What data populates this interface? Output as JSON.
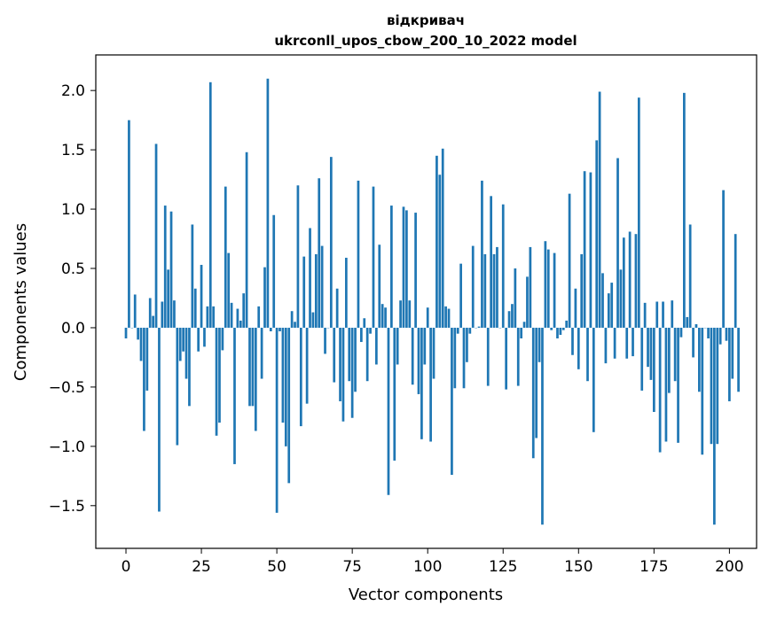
{
  "chart_data": {
    "type": "bar",
    "title_line1": "відкривач",
    "title_line2": "ukrconll_upos_cbow_200_10_2022 model",
    "xlabel": "Vector components",
    "ylabel": "Components values",
    "xlim": [
      -10,
      209
    ],
    "ylim": [
      -1.86,
      2.3
    ],
    "xticks": [
      0,
      25,
      50,
      75,
      100,
      125,
      150,
      175,
      200
    ],
    "xtick_labels": [
      "0",
      "25",
      "50",
      "75",
      "100",
      "125",
      "150",
      "175",
      "200"
    ],
    "yticks": [
      -1.5,
      -1.0,
      -0.5,
      0.0,
      0.5,
      1.0,
      1.5,
      2.0
    ],
    "ytick_labels": [
      "−1.5",
      "−1.0",
      "−0.5",
      "0.0",
      "0.5",
      "1.0",
      "1.5",
      "2.0"
    ],
    "bar_color": "#1f77b4",
    "values": [
      -0.09,
      1.75,
      0.0,
      0.28,
      -0.1,
      -0.28,
      -0.87,
      -0.53,
      0.25,
      0.1,
      1.55,
      -1.55,
      0.22,
      1.03,
      0.49,
      0.98,
      0.23,
      -0.99,
      -0.28,
      -0.2,
      -0.43,
      -0.66,
      0.87,
      0.33,
      -0.2,
      0.53,
      -0.16,
      0.18,
      2.07,
      0.18,
      -0.91,
      -0.8,
      -0.19,
      1.19,
      0.63,
      0.21,
      -1.15,
      0.16,
      0.06,
      0.29,
      1.48,
      -0.66,
      -0.66,
      -0.87,
      0.18,
      -0.43,
      0.51,
      2.1,
      -0.03,
      0.95,
      -1.56,
      -0.03,
      -0.8,
      -1.0,
      -1.31,
      0.14,
      0.05,
      1.2,
      -0.83,
      0.6,
      -0.64,
      0.84,
      0.13,
      0.62,
      1.26,
      0.69,
      -0.22,
      0.0,
      1.44,
      -0.46,
      0.33,
      -0.62,
      -0.79,
      0.59,
      -0.45,
      -0.76,
      -0.54,
      1.24,
      -0.12,
      0.08,
      -0.45,
      -0.05,
      1.19,
      -0.31,
      0.7,
      0.2,
      0.17,
      -1.41,
      1.03,
      -1.12,
      -0.31,
      0.23,
      1.02,
      0.99,
      0.23,
      -0.48,
      0.97,
      -0.56,
      -0.94,
      -0.31,
      0.17,
      -0.96,
      -0.43,
      1.45,
      1.29,
      1.51,
      0.18,
      0.16,
      -1.24,
      -0.51,
      -0.05,
      0.54,
      -0.51,
      -0.29,
      -0.05,
      0.69,
      0.0,
      0.01,
      1.24,
      0.62,
      -0.49,
      1.11,
      0.62,
      0.68,
      0.0,
      1.04,
      -0.52,
      0.14,
      0.2,
      0.5,
      -0.49,
      -0.09,
      0.05,
      0.43,
      0.68,
      -1.1,
      -0.93,
      -0.29,
      -1.66,
      0.73,
      0.66,
      -0.02,
      0.63,
      -0.09,
      -0.06,
      -0.02,
      0.06,
      1.13,
      -0.23,
      0.33,
      -0.35,
      0.62,
      1.32,
      -0.45,
      1.31,
      -0.88,
      1.58,
      1.99,
      0.46,
      -0.3,
      0.29,
      0.38,
      -0.26,
      1.43,
      0.49,
      0.76,
      -0.26,
      0.81,
      -0.24,
      0.79,
      1.94,
      -0.53,
      0.21,
      -0.33,
      -0.44,
      -0.71,
      0.22,
      -1.05,
      0.22,
      -0.96,
      -0.55,
      0.23,
      -0.45,
      -0.97,
      -0.08,
      1.98,
      0.09,
      0.87,
      -0.25,
      0.03,
      -0.54,
      -1.07,
      0.0,
      -0.09,
      -0.98,
      -1.66,
      -0.98,
      -0.14,
      1.16,
      -0.11,
      -0.62,
      -0.43,
      0.79,
      -0.54
    ]
  }
}
